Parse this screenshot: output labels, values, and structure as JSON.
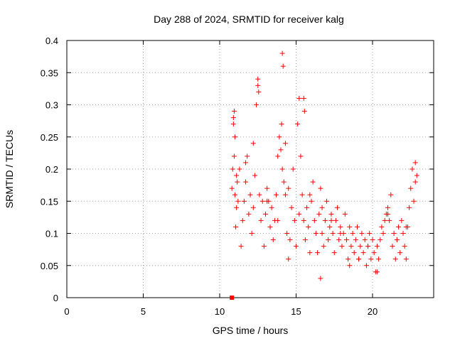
{
  "chart_data": {
    "type": "scatter",
    "title": "Day 288 of 2024, SRMTID for receiver kalg",
    "xlabel": "GPS time / hours",
    "ylabel": "SRMTID / TECUs",
    "xlim": [
      0,
      24
    ],
    "ylim": [
      0,
      0.4
    ],
    "xticks": [
      0,
      5,
      10,
      15,
      20
    ],
    "xtick_labels": [
      "0",
      "5",
      "10",
      "15",
      "20"
    ],
    "yticks": [
      0,
      0.05,
      0.1,
      0.15,
      0.2,
      0.25,
      0.3,
      0.35,
      0.4
    ],
    "ytick_labels": [
      "0",
      "0.05",
      "0.1",
      "0.15",
      "0.2",
      "0.25",
      "0.3",
      "0.35",
      "0.4"
    ],
    "grid": true,
    "marker": "+",
    "color": "#ff0000",
    "series": [
      {
        "name": "SRMTID",
        "x": [
          10.8,
          10.85,
          10.9,
          10.95,
          11.0,
          11.05,
          11.1,
          11.15,
          11.2,
          11.3,
          11.4,
          11.5,
          11.6,
          11.7,
          11.8,
          11.9,
          12.0,
          12.1,
          12.2,
          12.3,
          12.4,
          12.5,
          12.6,
          12.7,
          12.8,
          12.9,
          13.0,
          13.1,
          13.2,
          13.3,
          13.4,
          13.5,
          13.6,
          13.7,
          13.8,
          13.9,
          14.0,
          14.05,
          14.1,
          14.2,
          14.3,
          14.4,
          14.5,
          14.6,
          14.7,
          14.8,
          14.9,
          15.0,
          15.1,
          15.2,
          15.3,
          15.4,
          15.5,
          15.6,
          15.7,
          15.8,
          15.9,
          16.0,
          16.1,
          16.2,
          16.3,
          16.4,
          16.5,
          16.6,
          16.7,
          16.8,
          16.9,
          17.0,
          17.1,
          17.2,
          17.3,
          17.4,
          17.5,
          17.6,
          17.7,
          17.8,
          17.9,
          18.0,
          18.1,
          18.2,
          18.3,
          18.4,
          18.5,
          18.6,
          18.7,
          18.8,
          18.9,
          19.0,
          19.1,
          19.2,
          19.3,
          19.4,
          19.5,
          19.6,
          19.7,
          19.8,
          19.9,
          20.0,
          20.1,
          20.2,
          20.3,
          20.4,
          20.5,
          20.6,
          20.7,
          20.8,
          20.9,
          21.0,
          21.1,
          21.2,
          21.3,
          21.4,
          21.5,
          21.6,
          21.7,
          21.8,
          21.9,
          22.0,
          22.1,
          22.2,
          22.3,
          22.4,
          22.5,
          22.6,
          22.7,
          22.8,
          22.9,
          10.9,
          10.95,
          11.0,
          12.5,
          12.55,
          14.1,
          14.15,
          15.5,
          15.55,
          16.6,
          11.1,
          11.7,
          12.2,
          13.1,
          13.8,
          14.5,
          15.2,
          15.9,
          16.7,
          17.3,
          17.9,
          18.5,
          19.1,
          19.7,
          20.3,
          21.0,
          21.6,
          22.2,
          22.8,
          14.3
        ],
        "y": [
          0.17,
          0.2,
          0.28,
          0.22,
          0.16,
          0.11,
          0.14,
          0.18,
          0.15,
          0.2,
          0.08,
          0.12,
          0.15,
          0.18,
          0.22,
          0.13,
          0.16,
          0.1,
          0.14,
          0.19,
          0.3,
          0.33,
          0.16,
          0.12,
          0.15,
          0.08,
          0.13,
          0.17,
          0.15,
          0.11,
          0.14,
          0.09,
          0.12,
          0.16,
          0.22,
          0.25,
          0.23,
          0.27,
          0.2,
          0.18,
          0.16,
          0.1,
          0.06,
          0.09,
          0.14,
          0.2,
          0.12,
          0.08,
          0.27,
          0.31,
          0.22,
          0.16,
          0.12,
          0.09,
          0.14,
          0.11,
          0.07,
          0.15,
          0.18,
          0.12,
          0.1,
          0.07,
          0.13,
          0.17,
          0.1,
          0.08,
          0.12,
          0.15,
          0.09,
          0.11,
          0.13,
          0.1,
          0.07,
          0.12,
          0.14,
          0.09,
          0.11,
          0.08,
          0.1,
          0.13,
          0.09,
          0.06,
          0.11,
          0.08,
          0.1,
          0.07,
          0.09,
          0.11,
          0.06,
          0.08,
          0.1,
          0.07,
          0.09,
          0.05,
          0.08,
          0.1,
          0.06,
          0.09,
          0.07,
          0.04,
          0.08,
          0.06,
          0.09,
          0.11,
          0.1,
          0.12,
          0.13,
          0.14,
          0.12,
          0.16,
          0.08,
          0.1,
          0.06,
          0.09,
          0.11,
          0.07,
          0.12,
          0.1,
          0.08,
          0.06,
          0.11,
          0.14,
          0.17,
          0.2,
          0.15,
          0.18,
          0.19,
          0.27,
          0.29,
          0.25,
          0.34,
          0.32,
          0.38,
          0.36,
          0.31,
          0.29,
          0.03,
          0.19,
          0.21,
          0.24,
          0.15,
          0.12,
          0.17,
          0.13,
          0.16,
          0.14,
          0.12,
          0.1,
          0.05,
          0.06,
          0.08,
          0.04,
          0.13,
          0.09,
          0.11,
          0.21,
          0.24
        ],
        "special_points": [
          {
            "x": 10.8,
            "y": 0.0,
            "marker": "square"
          }
        ]
      }
    ]
  }
}
